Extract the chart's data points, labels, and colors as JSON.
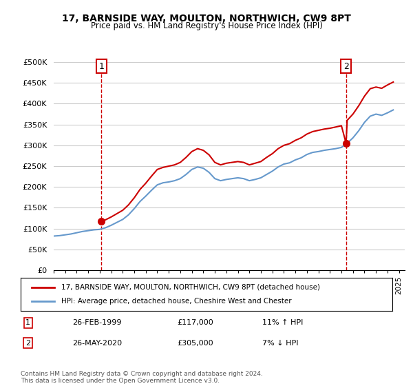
{
  "title": "17, BARNSIDE WAY, MOULTON, NORTHWICH, CW9 8PT",
  "subtitle": "Price paid vs. HM Land Registry's House Price Index (HPI)",
  "legend_line1": "17, BARNSIDE WAY, MOULTON, NORTHWICH, CW9 8PT (detached house)",
  "legend_line2": "HPI: Average price, detached house, Cheshire West and Chester",
  "annotation1": {
    "num": "1",
    "date": "26-FEB-1999",
    "price": "£117,000",
    "hpi": "11% ↑ HPI"
  },
  "annotation2": {
    "num": "2",
    "date": "26-MAY-2020",
    "price": "£305,000",
    "hpi": "7% ↓ HPI"
  },
  "footer": "Contains HM Land Registry data © Crown copyright and database right 2024.\nThis data is licensed under the Open Government Licence v3.0.",
  "xmin": 1995.0,
  "xmax": 2025.5,
  "ymin": 0,
  "ymax": 500000,
  "yticks": [
    0,
    50000,
    100000,
    150000,
    200000,
    250000,
    300000,
    350000,
    400000,
    450000,
    500000
  ],
  "ytick_labels": [
    "£0",
    "£50K",
    "£100K",
    "£150K",
    "£200K",
    "£250K",
    "£300K",
    "£350K",
    "£400K",
    "£450K",
    "£500K"
  ],
  "sale1_x": 1999.15,
  "sale1_y": 117000,
  "sale2_x": 2020.4,
  "sale2_y": 305000,
  "vline1_x": 1999.15,
  "vline2_x": 2020.4,
  "red_color": "#cc0000",
  "blue_color": "#6699cc",
  "vline_color": "#cc0000",
  "grid_color": "#cccccc",
  "background_color": "#ffffff",
  "hpi_line_x": [
    1995.0,
    1995.5,
    1996.0,
    1996.5,
    1997.0,
    1997.5,
    1998.0,
    1998.5,
    1999.0,
    1999.5,
    2000.0,
    2000.5,
    2001.0,
    2001.5,
    2002.0,
    2002.5,
    2003.0,
    2003.5,
    2004.0,
    2004.5,
    2005.0,
    2005.5,
    2006.0,
    2006.5,
    2007.0,
    2007.5,
    2008.0,
    2008.5,
    2009.0,
    2009.5,
    2010.0,
    2010.5,
    2011.0,
    2011.5,
    2012.0,
    2012.5,
    2013.0,
    2013.5,
    2014.0,
    2014.5,
    2015.0,
    2015.5,
    2016.0,
    2016.5,
    2017.0,
    2017.5,
    2018.0,
    2018.5,
    2019.0,
    2019.5,
    2020.0,
    2020.5,
    2021.0,
    2021.5,
    2022.0,
    2022.5,
    2023.0,
    2023.5,
    2024.0,
    2024.5
  ],
  "hpi_line_y": [
    82000,
    83000,
    85000,
    87000,
    90000,
    93000,
    95000,
    97000,
    98000,
    102000,
    108000,
    115000,
    122000,
    133000,
    148000,
    165000,
    178000,
    192000,
    205000,
    210000,
    212000,
    215000,
    220000,
    230000,
    242000,
    248000,
    245000,
    235000,
    220000,
    215000,
    218000,
    220000,
    222000,
    220000,
    215000,
    218000,
    222000,
    230000,
    238000,
    248000,
    255000,
    258000,
    265000,
    270000,
    278000,
    283000,
    285000,
    288000,
    290000,
    292000,
    295000,
    305000,
    318000,
    335000,
    355000,
    370000,
    375000,
    372000,
    378000,
    385000
  ],
  "price_line_x": [
    1999.15,
    1999.5,
    2000.0,
    2000.5,
    2001.0,
    2001.5,
    2002.0,
    2002.5,
    2003.0,
    2003.5,
    2004.0,
    2004.5,
    2005.0,
    2005.5,
    2006.0,
    2006.5,
    2007.0,
    2007.5,
    2008.0,
    2008.5,
    2009.0,
    2009.5,
    2010.0,
    2010.5,
    2011.0,
    2011.5,
    2012.0,
    2012.5,
    2013.0,
    2013.5,
    2014.0,
    2014.5,
    2015.0,
    2015.5,
    2016.0,
    2016.5,
    2017.0,
    2017.5,
    2018.0,
    2018.5,
    2019.0,
    2019.5,
    2020.0,
    2020.4,
    2020.5,
    2021.0,
    2021.5,
    2022.0,
    2022.5,
    2023.0,
    2023.5,
    2024.0,
    2024.5
  ],
  "price_line_y": [
    117000,
    121000,
    128000,
    136000,
    144000,
    157000,
    174000,
    194000,
    209000,
    226000,
    242000,
    247000,
    250000,
    253000,
    259000,
    271000,
    285000,
    292000,
    288000,
    277000,
    259000,
    253000,
    257000,
    259000,
    261000,
    259000,
    253000,
    257000,
    261000,
    271000,
    280000,
    292000,
    300000,
    304000,
    312000,
    318000,
    327000,
    333000,
    336000,
    339000,
    341000,
    344000,
    347000,
    305000,
    360000,
    375000,
    395000,
    418000,
    436000,
    440000,
    437000,
    445000,
    452000
  ]
}
